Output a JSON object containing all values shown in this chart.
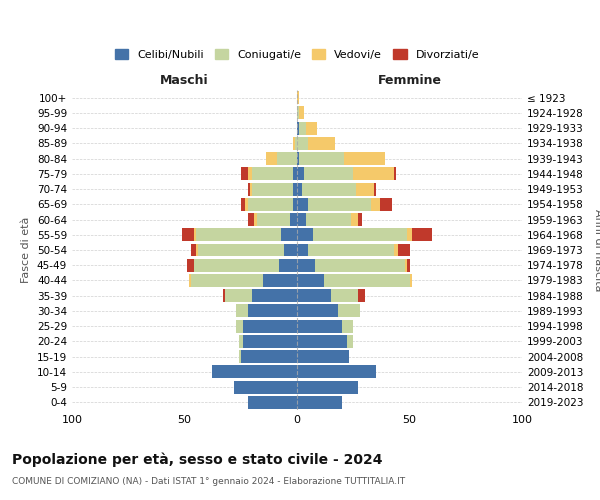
{
  "age_groups": [
    "0-4",
    "5-9",
    "10-14",
    "15-19",
    "20-24",
    "25-29",
    "30-34",
    "35-39",
    "40-44",
    "45-49",
    "50-54",
    "55-59",
    "60-64",
    "65-69",
    "70-74",
    "75-79",
    "80-84",
    "85-89",
    "90-94",
    "95-99",
    "100+"
  ],
  "birth_years": [
    "2019-2023",
    "2014-2018",
    "2009-2013",
    "2004-2008",
    "1999-2003",
    "1994-1998",
    "1989-1993",
    "1984-1988",
    "1979-1983",
    "1974-1978",
    "1969-1973",
    "1964-1968",
    "1959-1963",
    "1954-1958",
    "1949-1953",
    "1944-1948",
    "1939-1943",
    "1934-1938",
    "1929-1933",
    "1924-1928",
    "≤ 1923"
  ],
  "colors": {
    "celibi": "#4472a8",
    "coniugati": "#c5d5a0",
    "vedovi": "#f5c96a",
    "divorziati": "#c0392b"
  },
  "maschi": {
    "celibi": [
      22,
      28,
      38,
      25,
      24,
      24,
      22,
      20,
      15,
      8,
      6,
      7,
      3,
      2,
      2,
      2,
      0,
      0,
      0,
      0,
      0
    ],
    "coniugati": [
      0,
      0,
      0,
      1,
      2,
      3,
      5,
      12,
      32,
      38,
      38,
      38,
      15,
      20,
      18,
      18,
      9,
      1,
      0,
      0,
      0
    ],
    "vedovi": [
      0,
      0,
      0,
      0,
      0,
      0,
      0,
      0,
      1,
      0,
      1,
      1,
      1,
      1,
      1,
      2,
      5,
      1,
      0,
      0,
      0
    ],
    "divorziati": [
      0,
      0,
      0,
      0,
      0,
      0,
      0,
      1,
      0,
      3,
      2,
      5,
      3,
      2,
      1,
      3,
      0,
      0,
      0,
      0,
      0
    ]
  },
  "femmine": {
    "celibi": [
      20,
      27,
      35,
      23,
      22,
      20,
      18,
      15,
      12,
      8,
      5,
      7,
      4,
      5,
      2,
      3,
      1,
      0,
      1,
      0,
      0
    ],
    "coniugati": [
      0,
      0,
      0,
      0,
      3,
      5,
      10,
      12,
      38,
      40,
      38,
      42,
      20,
      28,
      24,
      22,
      20,
      5,
      3,
      1,
      0
    ],
    "vedovi": [
      0,
      0,
      0,
      0,
      0,
      0,
      0,
      0,
      1,
      1,
      2,
      2,
      3,
      4,
      8,
      18,
      18,
      12,
      5,
      2,
      1
    ],
    "divorziati": [
      0,
      0,
      0,
      0,
      0,
      0,
      0,
      3,
      0,
      1,
      5,
      9,
      2,
      5,
      1,
      1,
      0,
      0,
      0,
      0,
      0
    ]
  },
  "title": "Popolazione per età, sesso e stato civile - 2024",
  "subtitle": "COMUNE DI COMIZIANO (NA) - Dati ISTAT 1° gennaio 2024 - Elaborazione TUTTITALIA.IT",
  "xlabel_left": "Maschi",
  "xlabel_right": "Femmine",
  "ylabel_left": "Fasce di età",
  "ylabel_right": "Anni di nascita",
  "xlim": 100,
  "bg_color": "#ffffff",
  "grid_color": "#cccccc",
  "legend_labels": [
    "Celibi/Nubili",
    "Coniugati/e",
    "Vedovi/e",
    "Divorziati/e"
  ]
}
